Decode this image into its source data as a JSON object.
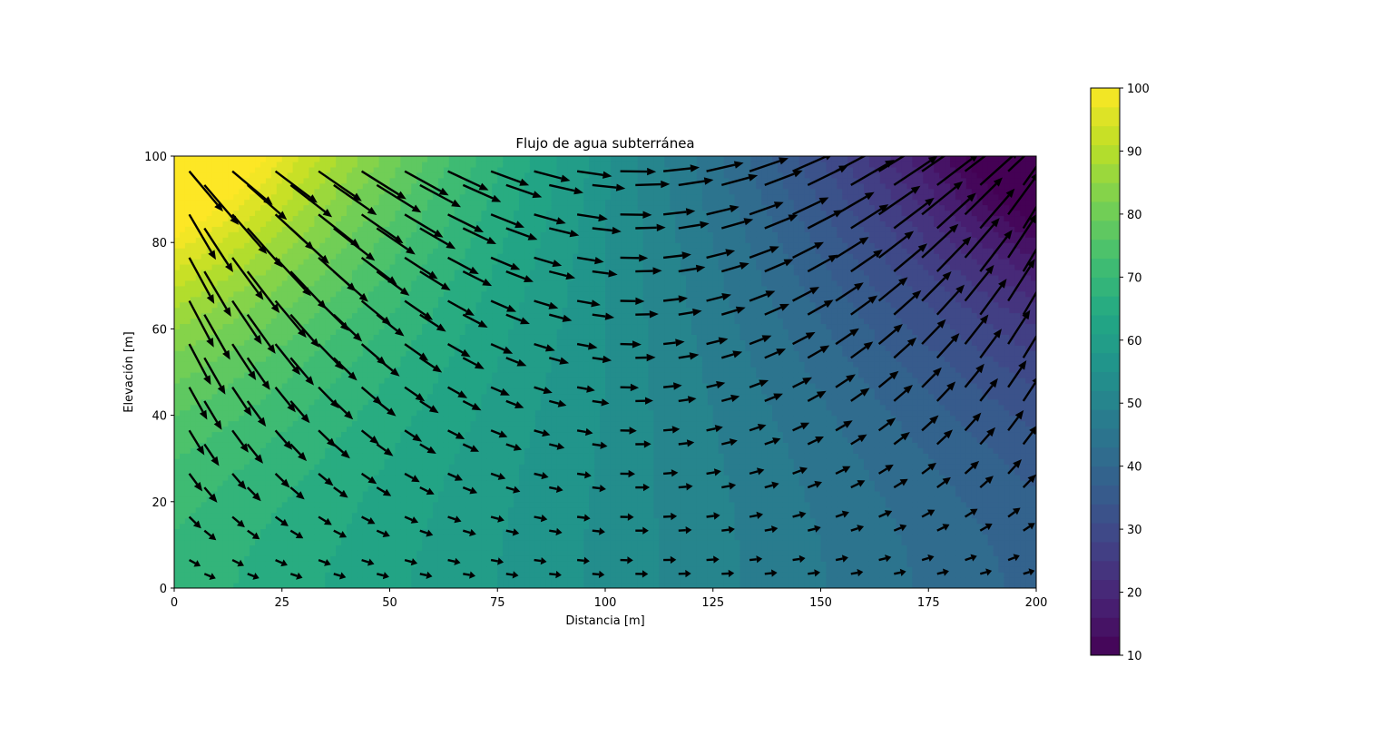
{
  "chart_data": {
    "type": "contour+quiver",
    "title": "Flujo de agua subterránea",
    "xlabel": "Distancia [m]",
    "ylabel": "Elevación [m]",
    "xlim": [
      0,
      200
    ],
    "ylim": [
      0,
      100
    ],
    "xticks": [
      0,
      25,
      50,
      75,
      100,
      125,
      150,
      175,
      200
    ],
    "yticks": [
      0,
      20,
      40,
      60,
      80,
      100
    ],
    "colorbar": {
      "colormap": "viridis",
      "range": [
        10,
        100
      ],
      "ticks": [
        10,
        20,
        30,
        40,
        50,
        60,
        70,
        80,
        90,
        100
      ],
      "levels": 30
    },
    "head_field_samples": [
      {
        "x": 0,
        "y": 100,
        "h": 100
      },
      {
        "x": 200,
        "y": 100,
        "h": 10
      },
      {
        "x": 0,
        "y": 0,
        "h": 67
      },
      {
        "x": 100,
        "y": 0,
        "h": 55
      },
      {
        "x": 100,
        "y": 100,
        "h": 57
      },
      {
        "x": 200,
        "y": 0,
        "h": 40
      },
      {
        "x": 200,
        "y": 50,
        "h": 33
      }
    ],
    "quiver": {
      "x_spacing": 10,
      "y_spacing": 10,
      "color": "#000000",
      "description_values": "flow vectors follow the negative gradient of the head field"
    }
  }
}
